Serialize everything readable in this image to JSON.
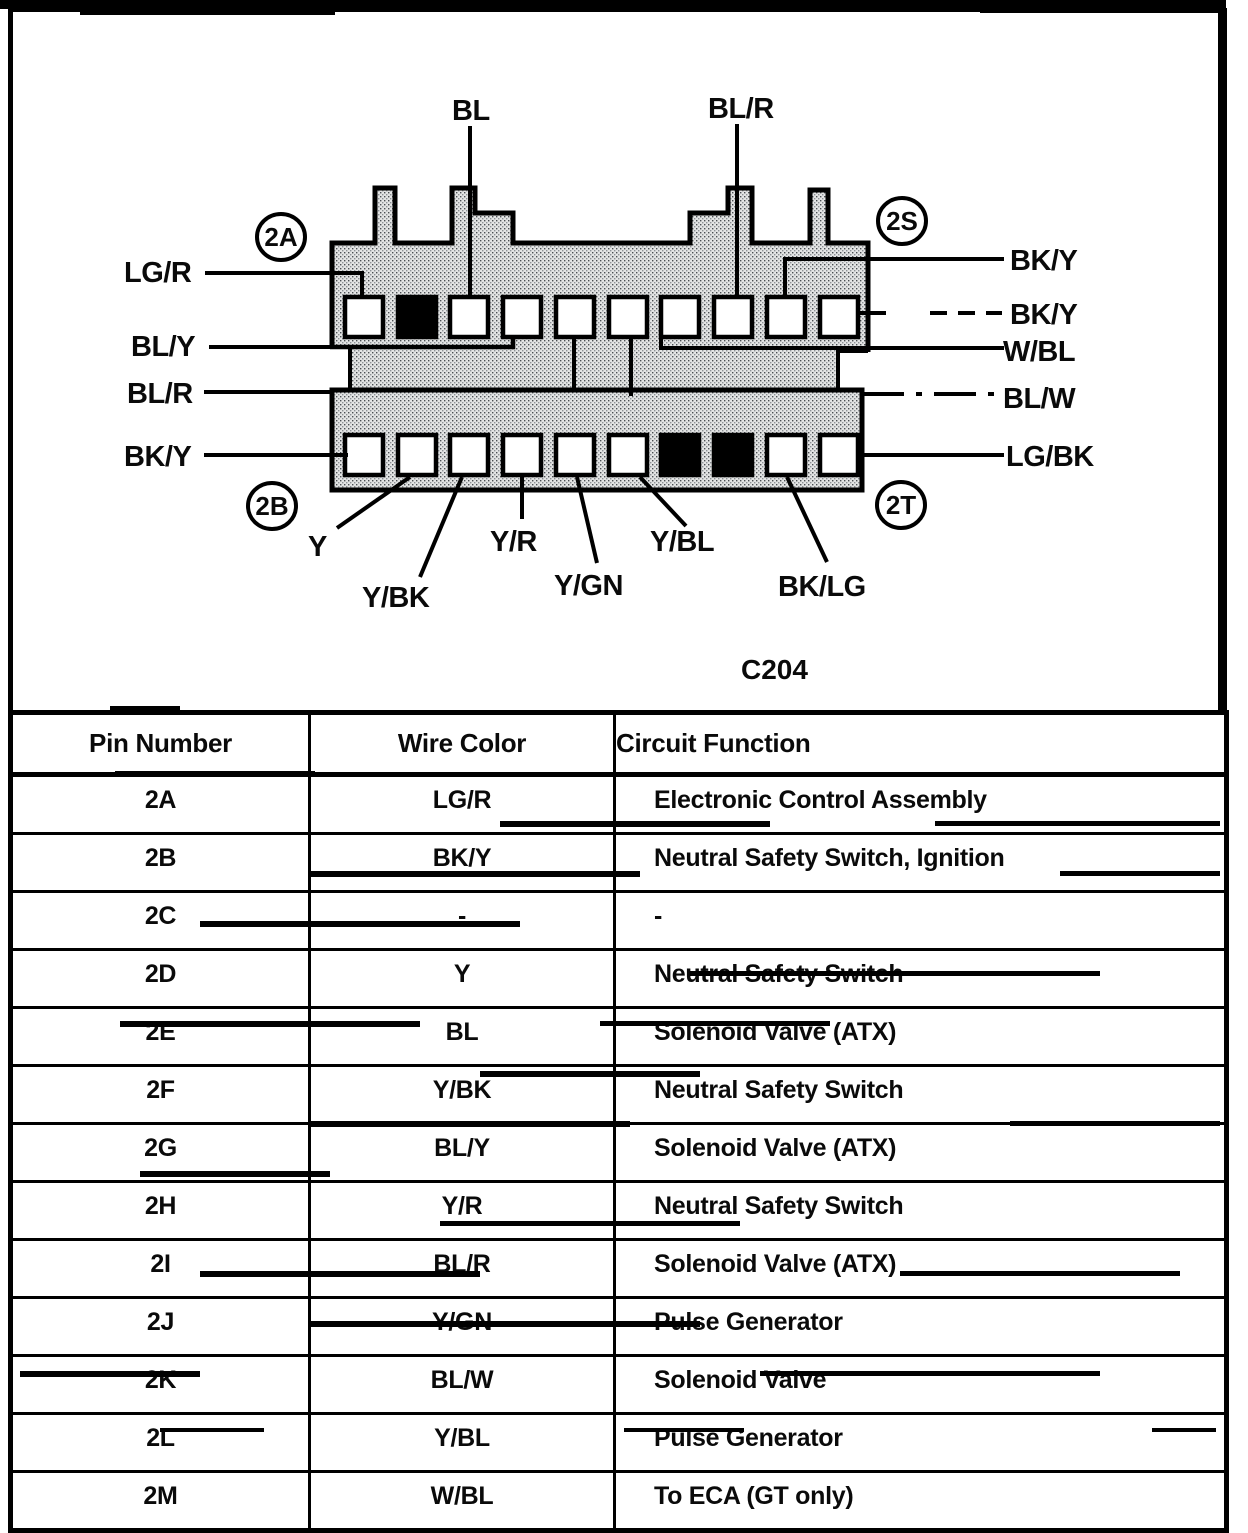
{
  "diagram": {
    "caption": "C204",
    "corner_labels": {
      "top_left": "2A",
      "top_right": "2S",
      "bottom_left": "2B",
      "bottom_right": "2T"
    },
    "top_labels": {
      "bl": "BL",
      "bl_r": "BL/R"
    },
    "left_labels": {
      "lg_r": "LG/R",
      "bl_y": "BL/Y",
      "bl_r": "BL/R",
      "bk_y": "BK/Y"
    },
    "right_labels": {
      "bk_y_1": "BK/Y",
      "bk_y_2": "BK/Y",
      "w_bl": "W/BL",
      "bl_w": "BL/W",
      "lg_bk": "LG/BK"
    },
    "bottom_labels": {
      "y": "Y",
      "y_bk": "Y/BK",
      "y_r": "Y/R",
      "y_gn": "Y/GN",
      "y_bl": "Y/BL",
      "bk_lg": "BK/LG"
    },
    "pins": {
      "top_row_count": 10,
      "bottom_row_count": 10,
      "top_filled": [
        2
      ],
      "bottom_filled": [
        7,
        8
      ]
    }
  },
  "table": {
    "headers": [
      "Pin Number",
      "Wire Color",
      "Circuit Function"
    ],
    "rows": [
      [
        "2A",
        "LG/R",
        "Electronic Control Assembly"
      ],
      [
        "2B",
        "BK/Y",
        "Neutral Safety Switch, Ignition"
      ],
      [
        "2C",
        "-",
        "-"
      ],
      [
        "2D",
        "Y",
        "Neutral Safety Switch"
      ],
      [
        "2E",
        "BL",
        "Solenoid Valve (ATX)"
      ],
      [
        "2F",
        "Y/BK",
        "Neutral Safety Switch"
      ],
      [
        "2G",
        "BL/Y",
        "Solenoid Valve (ATX)"
      ],
      [
        "2H",
        "Y/R",
        "Neutral Safety Switch"
      ],
      [
        "2I",
        "BL/R",
        "Solenoid Valve (ATX)"
      ],
      [
        "2J",
        "Y/GN",
        "Pulse Generator"
      ],
      [
        "2K",
        "BL/W",
        "Solenoid Valve"
      ],
      [
        "2L",
        "Y/BL",
        "Pulse Generator"
      ],
      [
        "2M",
        "W/BL",
        "To ECA (GT only)"
      ]
    ]
  }
}
